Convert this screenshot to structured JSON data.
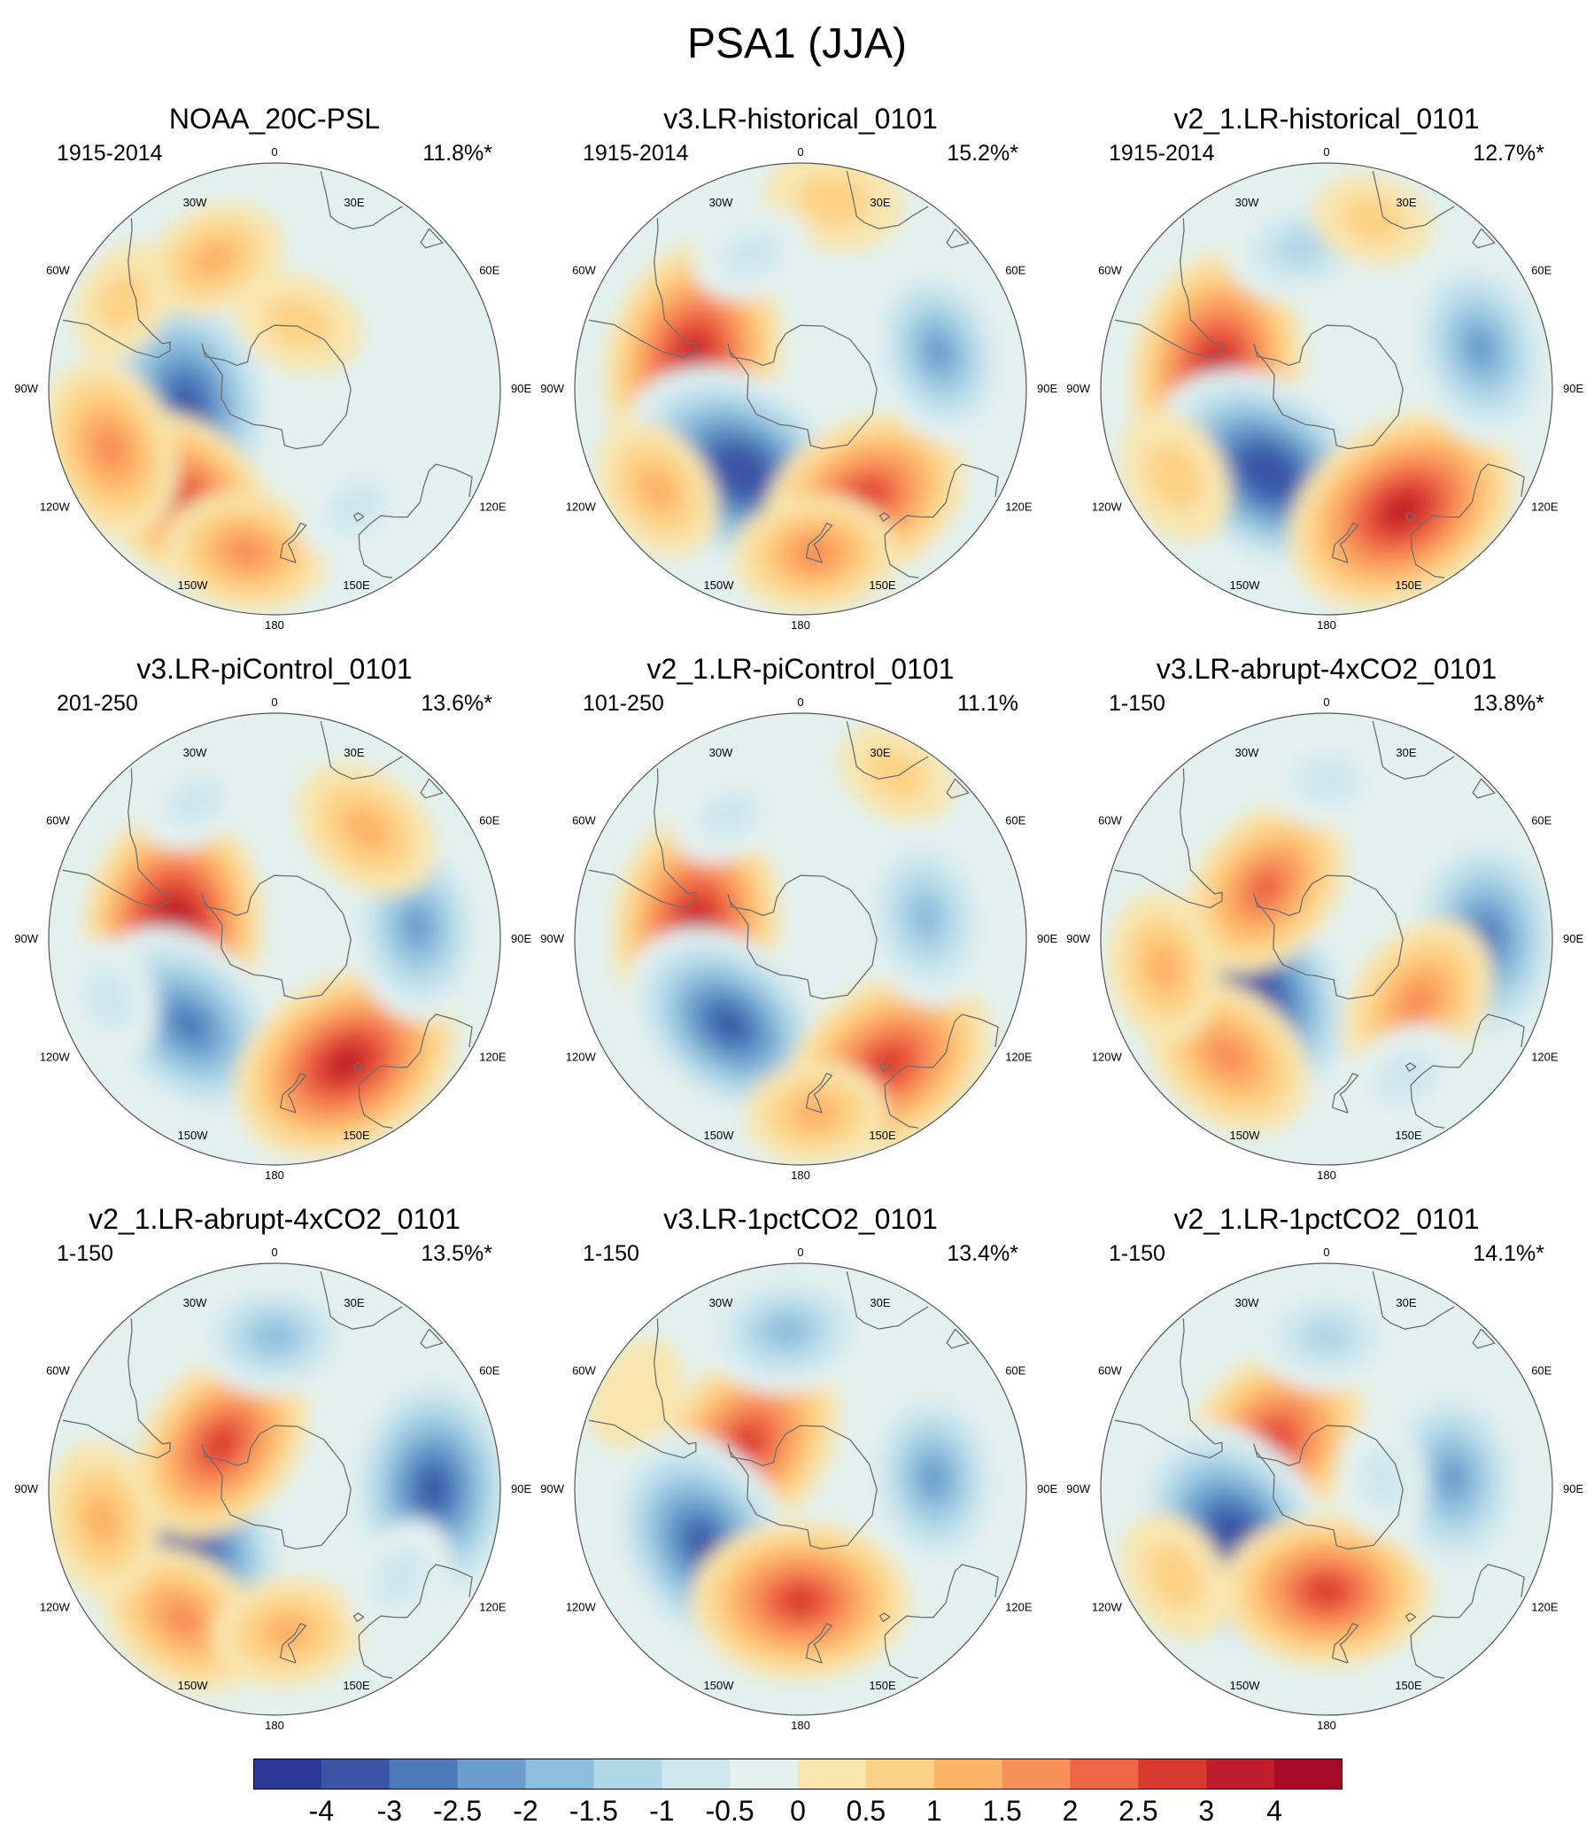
{
  "figure_title": "PSA1 (JJA)",
  "map_style": {
    "background_color": "#e2f0ee",
    "coast_color": "#6e6e6e",
    "rim_color": "#555555"
  },
  "longitude_labels": [
    "0",
    "30E",
    "60E",
    "90E",
    "120E",
    "150E",
    "180",
    "150W",
    "120W",
    "90W",
    "60W",
    "30W"
  ],
  "panels": [
    {
      "title": "NOAA_20C-PSL",
      "period": "1915-2014",
      "variance": "11.8%*",
      "anomalies": [
        {
          "lat": -62,
          "lon": -100,
          "value": -3.5
        },
        {
          "lat": -45,
          "lon": -140,
          "value": 2.6
        },
        {
          "lat": -35,
          "lon": -110,
          "value": 2.0
        },
        {
          "lat": -38,
          "lon": -170,
          "value": 1.6
        },
        {
          "lat": -45,
          "lon": -25,
          "value": 1.1
        },
        {
          "lat": -68,
          "lon": 20,
          "value": 0.8
        },
        {
          "lat": -45,
          "lon": 145,
          "value": -0.7
        },
        {
          "lat": -35,
          "lon": -60,
          "value": 0.6
        }
      ]
    },
    {
      "title": "v3.LR-historical_0101",
      "period": "1915-2014",
      "variance": "15.2%*",
      "anomalies": [
        {
          "lat": -55,
          "lon": -75,
          "value": 3.4
        },
        {
          "lat": -58,
          "lon": -145,
          "value": -3.8
        },
        {
          "lat": -50,
          "lon": 150,
          "value": 2.8
        },
        {
          "lat": -38,
          "lon": 175,
          "value": 1.6
        },
        {
          "lat": -45,
          "lon": 75,
          "value": -2.1
        },
        {
          "lat": -30,
          "lon": 10,
          "value": 1.0
        },
        {
          "lat": -45,
          "lon": -20,
          "value": -0.6
        },
        {
          "lat": -35,
          "lon": -125,
          "value": 1.2
        }
      ]
    },
    {
      "title": "v2_1.LR-historical_0101",
      "period": "1915-2014",
      "variance": "12.7%*",
      "anomalies": [
        {
          "lat": -55,
          "lon": -80,
          "value": 3.3
        },
        {
          "lat": -58,
          "lon": -145,
          "value": -3.6
        },
        {
          "lat": -45,
          "lon": 148,
          "value": 3.5
        },
        {
          "lat": -40,
          "lon": 75,
          "value": -2.4
        },
        {
          "lat": -45,
          "lon": -10,
          "value": -1.3
        },
        {
          "lat": -35,
          "lon": -120,
          "value": 1.0
        },
        {
          "lat": -35,
          "lon": 15,
          "value": 0.6
        }
      ]
    },
    {
      "title": "v3.LR-piControl_0101",
      "period": "201-250",
      "variance": "13.6%*",
      "anomalies": [
        {
          "lat": -58,
          "lon": -85,
          "value": 3.6
        },
        {
          "lat": -52,
          "lon": -135,
          "value": -3.0
        },
        {
          "lat": -45,
          "lon": 150,
          "value": 3.3
        },
        {
          "lat": -45,
          "lon": 85,
          "value": -2.2
        },
        {
          "lat": -45,
          "lon": 40,
          "value": 1.4
        },
        {
          "lat": -40,
          "lon": -30,
          "value": -0.6
        },
        {
          "lat": -35,
          "lon": -110,
          "value": -0.7
        }
      ]
    },
    {
      "title": "v2_1.LR-piControl_0101",
      "period": "101-250",
      "variance": "11.1%",
      "anomalies": [
        {
          "lat": -57,
          "lon": -83,
          "value": 3.2
        },
        {
          "lat": -55,
          "lon": -140,
          "value": -3.1
        },
        {
          "lat": -42,
          "lon": 145,
          "value": 3.0
        },
        {
          "lat": -50,
          "lon": 80,
          "value": -2.0
        },
        {
          "lat": -35,
          "lon": 175,
          "value": 1.1
        },
        {
          "lat": -45,
          "lon": -30,
          "value": -0.6
        },
        {
          "lat": -30,
          "lon": 30,
          "value": 0.6
        }
      ]
    },
    {
      "title": "v3.LR-abrupt-4xCO2_0101",
      "period": "1-150",
      "variance": "13.8%*",
      "anomalies": [
        {
          "lat": -62,
          "lon": -125,
          "value": -3.7
        },
        {
          "lat": -40,
          "lon": 90,
          "value": -3.0
        },
        {
          "lat": -65,
          "lon": -50,
          "value": 2.2
        },
        {
          "lat": -55,
          "lon": 125,
          "value": 2.0
        },
        {
          "lat": -42,
          "lon": -140,
          "value": 2.0
        },
        {
          "lat": -38,
          "lon": -100,
          "value": 1.3
        },
        {
          "lat": -40,
          "lon": 0,
          "value": -0.8
        },
        {
          "lat": -40,
          "lon": 150,
          "value": -0.8
        }
      ]
    },
    {
      "title": "v2_1.LR-abrupt-4xCO2_0101",
      "period": "1-150",
      "variance": "13.5%*",
      "anomalies": [
        {
          "lat": -58,
          "lon": -120,
          "value": -3.8
        },
        {
          "lat": -40,
          "lon": 90,
          "value": -3.4
        },
        {
          "lat": -68,
          "lon": -50,
          "value": 2.6
        },
        {
          "lat": -42,
          "lon": 0,
          "value": -1.6
        },
        {
          "lat": -40,
          "lon": -145,
          "value": 1.9
        },
        {
          "lat": -35,
          "lon": -100,
          "value": 1.4
        },
        {
          "lat": -45,
          "lon": 175,
          "value": 1.3
        },
        {
          "lat": -42,
          "lon": 125,
          "value": -0.7
        }
      ]
    },
    {
      "title": "v3.LR-1pctCO2_0101",
      "period": "1-150",
      "variance": "13.4%*",
      "anomalies": [
        {
          "lat": -68,
          "lon": -52,
          "value": 3.0
        },
        {
          "lat": -55,
          "lon": -120,
          "value": -3.4
        },
        {
          "lat": -55,
          "lon": 180,
          "value": 2.9
        },
        {
          "lat": -48,
          "lon": 85,
          "value": -2.2
        },
        {
          "lat": -40,
          "lon": -5,
          "value": -1.8
        },
        {
          "lat": -30,
          "lon": -60,
          "value": 0.5
        }
      ]
    },
    {
      "title": "v2_1.LR-1pctCO2_0101",
      "period": "1-150",
      "variance": "14.1%*",
      "anomalies": [
        {
          "lat": -68,
          "lon": -52,
          "value": 3.0
        },
        {
          "lat": -57,
          "lon": -120,
          "value": -3.7
        },
        {
          "lat": -58,
          "lon": 180,
          "value": 2.7
        },
        {
          "lat": -50,
          "lon": 85,
          "value": -2.4
        },
        {
          "lat": -42,
          "lon": 0,
          "value": -1.3
        },
        {
          "lat": -35,
          "lon": -120,
          "value": 0.9
        },
        {
          "lat": -72,
          "lon": 80,
          "value": -0.6
        }
      ]
    }
  ],
  "colorbar": {
    "ticks": [
      "-4",
      "-3",
      "-2.5",
      "-2",
      "-1.5",
      "-1",
      "-0.5",
      "0",
      "0.5",
      "1",
      "1.5",
      "2",
      "2.5",
      "3",
      "4"
    ],
    "levels": [
      -4,
      -3,
      -2.5,
      -2,
      -1.5,
      -1,
      -0.5,
      0,
      0.5,
      1,
      1.5,
      2,
      2.5,
      3,
      4
    ],
    "colors": [
      "#2b3895",
      "#3b55a6",
      "#4c7ab9",
      "#6c9dcc",
      "#8ebedd",
      "#b0d7e6",
      "#cee7ef",
      "#e2f0ee",
      "#f8e5ae",
      "#fdd285",
      "#fdb368",
      "#f8905a",
      "#ee6444",
      "#d93a2f",
      "#bf1d2b",
      "#a50b26"
    ]
  }
}
